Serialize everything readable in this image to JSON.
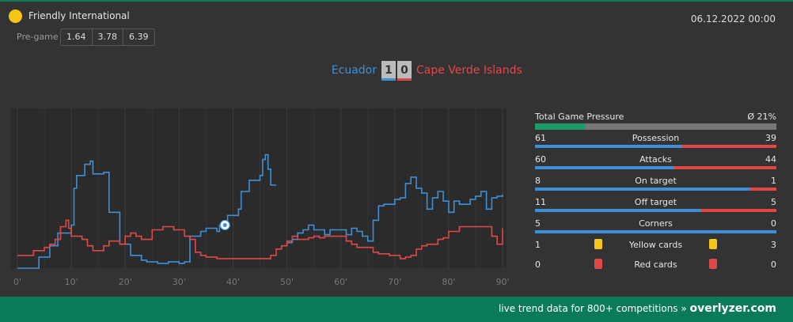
{
  "header": {
    "competition": "Friendly International",
    "datetime": "06.12.2022 00:00",
    "pregame_label": "Pre-game",
    "odds": [
      "1.64",
      "3.78",
      "6.39"
    ]
  },
  "match": {
    "home_team": "Ecuador",
    "away_team": "Cape Verde Islands",
    "home_score": "1",
    "away_score": "0"
  },
  "colors": {
    "home": "#3f8fd6",
    "away": "#e04848",
    "brand": "#0a7a5a",
    "pressure": "#1c9c6a",
    "yellow_card": "#f5c518",
    "red_card": "#e04848"
  },
  "stats": {
    "pressure": {
      "label": "Total Game Pressure",
      "value": "Ø 21%",
      "fraction": 0.21
    },
    "rows": [
      {
        "label": "Possession",
        "home": "61",
        "away": "39"
      },
      {
        "label": "Attacks",
        "home": "60",
        "away": "44"
      },
      {
        "label": "On target",
        "home": "8",
        "away": "1"
      },
      {
        "label": "Off target",
        "home": "11",
        "away": "5"
      },
      {
        "label": "Corners",
        "home": "5",
        "away": "0"
      }
    ],
    "yellow_cards": {
      "label": "Yellow cards",
      "home": "1",
      "away": "3"
    },
    "red_cards": {
      "label": "Red cards",
      "home": "0",
      "away": "0"
    }
  },
  "chart_data": {
    "type": "line",
    "x_ticks": [
      "0'",
      "10'",
      "20'",
      "30'",
      "40'",
      "50'",
      "60'",
      "70'",
      "80'",
      "90'"
    ],
    "xlim": [
      0,
      90
    ],
    "ylim": [
      0,
      100
    ],
    "grid": true,
    "goal_minute": 38.5,
    "series": [
      {
        "team": "Ecuador",
        "color": "#3f8fd6",
        "points": [
          [
            0,
            0
          ],
          [
            3,
            0
          ],
          [
            4,
            7
          ],
          [
            5,
            7
          ],
          [
            6,
            14
          ],
          [
            7,
            14
          ],
          [
            7.5,
            22
          ],
          [
            9,
            22
          ],
          [
            10,
            27
          ],
          [
            10.5,
            50
          ],
          [
            11,
            58
          ],
          [
            12,
            58
          ],
          [
            12.5,
            65
          ],
          [
            13,
            65
          ],
          [
            13.5,
            67
          ],
          [
            14,
            59
          ],
          [
            15,
            59
          ],
          [
            16,
            60
          ],
          [
            17,
            35
          ],
          [
            18,
            35
          ],
          [
            19,
            15
          ],
          [
            20,
            15
          ],
          [
            21,
            8
          ],
          [
            22,
            8
          ],
          [
            23,
            5
          ],
          [
            24,
            4
          ],
          [
            26,
            3
          ],
          [
            27,
            3
          ],
          [
            28,
            4
          ],
          [
            30,
            3
          ],
          [
            31,
            4
          ],
          [
            32,
            20
          ],
          [
            33,
            20
          ],
          [
            34,
            23
          ],
          [
            35,
            25
          ],
          [
            36,
            25
          ],
          [
            37,
            23
          ],
          [
            37.5,
            27
          ],
          [
            38.5,
            27
          ],
          [
            39,
            33
          ],
          [
            40,
            33
          ],
          [
            41,
            37
          ],
          [
            41.5,
            48
          ],
          [
            42,
            48
          ],
          [
            43,
            55
          ],
          [
            44,
            55
          ],
          [
            45,
            58
          ],
          [
            45.5,
            68
          ],
          [
            46,
            71
          ],
          [
            46.5,
            62
          ],
          [
            47,
            52
          ],
          [
            48,
            52
          ]
        ]
      },
      {
        "team": "Ecuador",
        "color": "#3f8fd6",
        "points": [
          [
            49,
            14
          ],
          [
            50,
            16
          ],
          [
            51,
            18
          ],
          [
            52,
            22
          ],
          [
            53,
            24
          ],
          [
            54,
            27
          ],
          [
            55,
            24
          ],
          [
            56,
            24
          ],
          [
            57,
            21
          ],
          [
            58,
            24
          ],
          [
            59,
            24
          ],
          [
            60,
            24
          ],
          [
            61,
            21
          ],
          [
            62,
            25
          ],
          [
            63,
            23
          ],
          [
            64,
            20
          ],
          [
            65,
            17
          ],
          [
            66,
            30
          ],
          [
            67,
            39
          ],
          [
            68,
            40
          ],
          [
            69,
            40
          ],
          [
            70,
            43
          ],
          [
            71,
            44
          ],
          [
            72,
            53
          ],
          [
            73,
            57
          ],
          [
            74,
            50
          ],
          [
            75,
            47
          ],
          [
            76,
            37
          ],
          [
            77,
            44
          ],
          [
            78,
            48
          ],
          [
            79,
            42
          ],
          [
            80,
            35
          ],
          [
            81,
            42
          ],
          [
            82,
            40
          ],
          [
            83,
            40
          ],
          [
            84,
            43
          ],
          [
            85,
            45
          ],
          [
            86,
            48
          ],
          [
            87,
            37
          ],
          [
            88,
            44
          ],
          [
            89,
            45
          ],
          [
            90,
            46
          ]
        ]
      },
      {
        "team": "Cape Verde Islands",
        "color": "#e04848",
        "points": [
          [
            0,
            8
          ],
          [
            2,
            8
          ],
          [
            3,
            11
          ],
          [
            4,
            11
          ],
          [
            5,
            13
          ],
          [
            6,
            15
          ],
          [
            7,
            18
          ],
          [
            8,
            26
          ],
          [
            9,
            30
          ],
          [
            9.5,
            25
          ],
          [
            10,
            20
          ],
          [
            11,
            20
          ],
          [
            12,
            18
          ],
          [
            13,
            14
          ],
          [
            14,
            11
          ],
          [
            15,
            11
          ],
          [
            16,
            14
          ],
          [
            17,
            17
          ],
          [
            18,
            17
          ],
          [
            19,
            15
          ],
          [
            20,
            20
          ],
          [
            21,
            22
          ],
          [
            22,
            20
          ],
          [
            23,
            18
          ],
          [
            24,
            18
          ],
          [
            25,
            24
          ],
          [
            26,
            24
          ],
          [
            27,
            26
          ],
          [
            28,
            26
          ],
          [
            29,
            24
          ],
          [
            30,
            24
          ],
          [
            31,
            20
          ],
          [
            32,
            18
          ],
          [
            33,
            10
          ],
          [
            34,
            8
          ],
          [
            35,
            7
          ],
          [
            36,
            7
          ],
          [
            37,
            6
          ],
          [
            38,
            6
          ],
          [
            40,
            6
          ],
          [
            42,
            6
          ],
          [
            43,
            6
          ],
          [
            44,
            6
          ],
          [
            45,
            6
          ],
          [
            46,
            6
          ],
          [
            47,
            8
          ],
          [
            48,
            12
          ],
          [
            49,
            14
          ],
          [
            50,
            17
          ],
          [
            51,
            20
          ],
          [
            52,
            18
          ],
          [
            53,
            18
          ],
          [
            54,
            19
          ],
          [
            55,
            20
          ],
          [
            56,
            19
          ],
          [
            57,
            20
          ],
          [
            58,
            20
          ],
          [
            59,
            20
          ],
          [
            60,
            20
          ],
          [
            61,
            17
          ],
          [
            62,
            15
          ],
          [
            63,
            13
          ],
          [
            64,
            13
          ],
          [
            65,
            13
          ],
          [
            66,
            10
          ],
          [
            67,
            9
          ],
          [
            68,
            9
          ],
          [
            69,
            8
          ],
          [
            70,
            8
          ],
          [
            71,
            6
          ],
          [
            72,
            7
          ],
          [
            73,
            8
          ],
          [
            74,
            12
          ],
          [
            75,
            14
          ],
          [
            76,
            15
          ],
          [
            77,
            15
          ],
          [
            78,
            18
          ],
          [
            79,
            19
          ],
          [
            80,
            23
          ],
          [
            81,
            23
          ],
          [
            82,
            26
          ],
          [
            83,
            26
          ],
          [
            84,
            26
          ],
          [
            85,
            26
          ],
          [
            86,
            26
          ],
          [
            87,
            26
          ],
          [
            88,
            20
          ],
          [
            89,
            15
          ],
          [
            90,
            25
          ]
        ]
      }
    ]
  },
  "footer": {
    "text": "live trend data for 800+ competitions »",
    "brand": "overlyzer.com"
  }
}
